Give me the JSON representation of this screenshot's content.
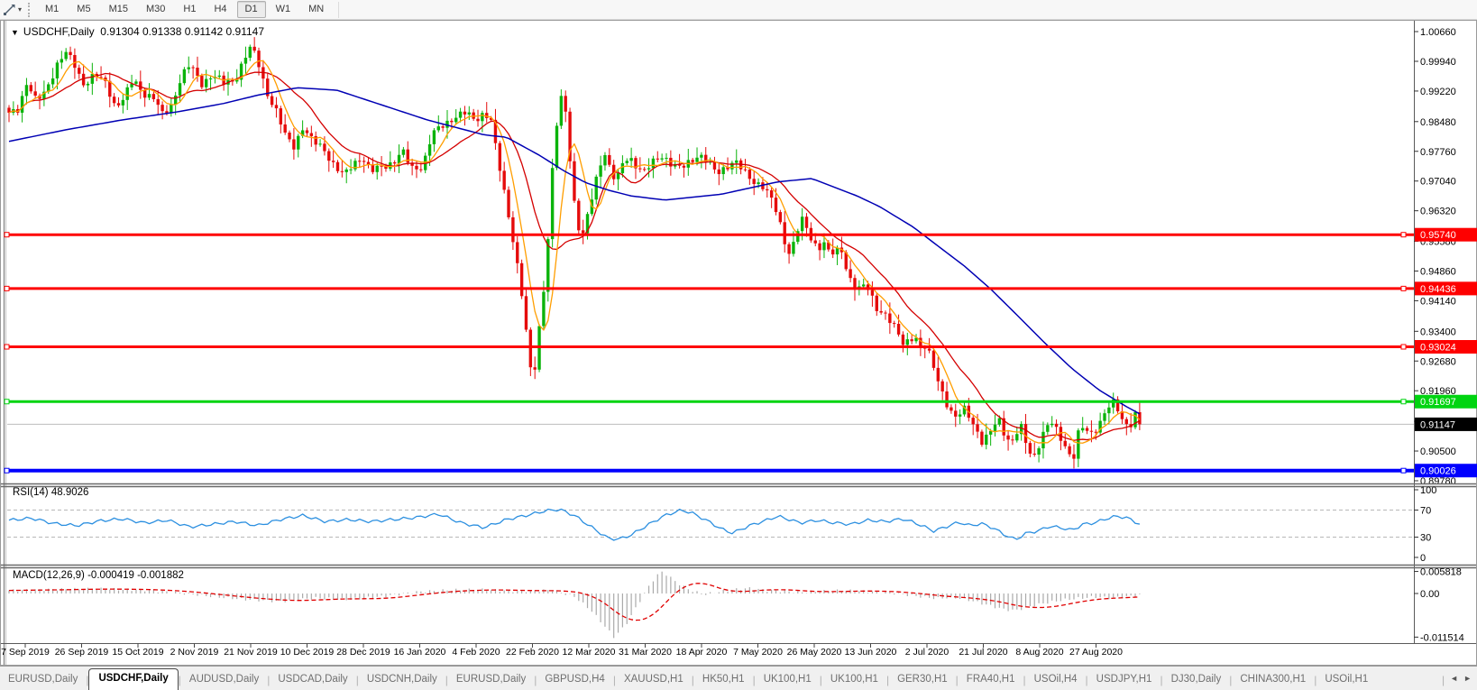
{
  "toolbar": {
    "tool_icon": "trendline-tool-icon",
    "dropdown_glyph": "▾",
    "timeframes": [
      "M1",
      "M5",
      "M15",
      "M30",
      "H1",
      "H4",
      "D1",
      "W1",
      "MN"
    ],
    "active_timeframe": "D1"
  },
  "chart": {
    "collapse_glyph": "▼",
    "symbol_title": "USDCHF,Daily",
    "ohlc_text": "0.91304 0.91338 0.91142 0.91147"
  },
  "indicators": {
    "rsi_label": "RSI(14)",
    "rsi_value": "48.9026",
    "macd_label": "MACD(12,26,9)",
    "macd_values": "-0.000419 -0.001882"
  },
  "tabbar": {
    "divider_glyph": "|",
    "scroll_left_glyph": "◄",
    "scroll_right_glyph": "►",
    "tabs": [
      {
        "label": "EURUSD,Daily",
        "active": false
      },
      {
        "label": "USDCHF,Daily",
        "active": true
      },
      {
        "label": "AUDUSD,Daily",
        "active": false
      },
      {
        "label": "USDCAD,Daily",
        "active": false
      },
      {
        "label": "USDCNH,Daily",
        "active": false
      },
      {
        "label": "EURUSD,Daily",
        "active": false
      },
      {
        "label": "GBPUSD,H4",
        "active": false
      },
      {
        "label": "XAUUSD,H1",
        "active": false
      },
      {
        "label": "HK50,H1",
        "active": false
      },
      {
        "label": "UK100,H1",
        "active": false
      },
      {
        "label": "UK100,H1",
        "active": false
      },
      {
        "label": "GER30,H1",
        "active": false
      },
      {
        "label": "FRA40,H1",
        "active": false
      },
      {
        "label": "USOil,H4",
        "active": false
      },
      {
        "label": "USDJPY,H1",
        "active": false
      },
      {
        "label": "DJ30,Daily",
        "active": false
      },
      {
        "label": "CHINA300,H1",
        "active": false
      },
      {
        "label": "USOil,H1",
        "active": false
      }
    ]
  },
  "chart_data": {
    "type": "candlestick+indicators",
    "symbol": "USDCHF",
    "timeframe": "Daily",
    "bars": 259,
    "price_range": {
      "top": 1.00879,
      "bottom": 0.89736
    },
    "price_axis_ticks": [
      "1.00660",
      "0.99940",
      "0.99220",
      "0.98480",
      "0.97760",
      "0.97040",
      "0.96320",
      "0.95580",
      "0.94860",
      "0.94140",
      "0.93400",
      "0.92680",
      "0.91960",
      "0.91220",
      "0.90500",
      "0.89780"
    ],
    "date_labels": [
      "7 Sep 2019",
      "26 Sep 2019",
      "15 Oct 2019",
      "2 Nov 2019",
      "21 Nov 2019",
      "10 Dec 2019",
      "28 Dec 2019",
      "16 Jan 2020",
      "4 Feb 2020",
      "22 Feb 2020",
      "12 Mar 2020",
      "31 Mar 2020",
      "18 Apr 2020",
      "7 May 2020",
      "26 May 2020",
      "13 Jun 2020",
      "2 Jul 2020",
      "21 Jul 2020",
      "8 Aug 2020",
      "27 Aug 2020"
    ],
    "hlines": [
      {
        "price": 0.9574,
        "label": "0.95740",
        "color": "#fe0000",
        "width": 3
      },
      {
        "price": 0.94436,
        "label": "0.94436",
        "color": "#fe0000",
        "width": 3
      },
      {
        "price": 0.93024,
        "label": "0.93024",
        "color": "#fe0000",
        "width": 3
      },
      {
        "price": 0.91697,
        "label": "0.91697",
        "color": "#00d411",
        "width": 3
      },
      {
        "price": 0.90026,
        "label": "0.90026",
        "color": "#0000fe",
        "width": 4
      }
    ],
    "current_price": {
      "price": 0.91147,
      "label": "0.91147",
      "line_color": "#bdbdbd",
      "badge_color": "#000000"
    },
    "colors": {
      "bull": "#0bb30b",
      "bear": "#e50b0b",
      "ma_fast": "#ff9e00",
      "ma_mid": "#d40000",
      "ma_slow": "#0000b4",
      "rsi": "#2b8fe0",
      "rsi_level": "#b8b8b8",
      "macd_hist": "#aaaaaa",
      "macd_signal": "#e00000",
      "axis_text": "#000000",
      "badge_text": "#ffffff"
    },
    "close_path": [
      [
        0.0,
        0.9865
      ],
      [
        0.008,
        0.988
      ],
      [
        0.016,
        0.9945
      ],
      [
        0.024,
        0.9895
      ],
      [
        0.032,
        0.992
      ],
      [
        0.042,
        0.9985
      ],
      [
        0.05,
        1.0015
      ],
      [
        0.058,
        0.9985
      ],
      [
        0.066,
        0.994
      ],
      [
        0.076,
        0.996
      ],
      [
        0.086,
        0.994
      ],
      [
        0.094,
        0.9885
      ],
      [
        0.102,
        0.9905
      ],
      [
        0.11,
        0.995
      ],
      [
        0.118,
        0.992
      ],
      [
        0.128,
        0.9905
      ],
      [
        0.136,
        0.9862
      ],
      [
        0.144,
        0.989
      ],
      [
        0.152,
        0.9955
      ],
      [
        0.16,
        0.9985
      ],
      [
        0.17,
        0.994
      ],
      [
        0.18,
        0.9962
      ],
      [
        0.19,
        0.994
      ],
      [
        0.2,
        0.995
      ],
      [
        0.208,
        1.0
      ],
      [
        0.214,
        1.0028
      ],
      [
        0.22,
        0.9995
      ],
      [
        0.228,
        0.992
      ],
      [
        0.236,
        0.9875
      ],
      [
        0.244,
        0.9815
      ],
      [
        0.252,
        0.979
      ],
      [
        0.26,
        0.9835
      ],
      [
        0.268,
        0.98
      ],
      [
        0.278,
        0.9785
      ],
      [
        0.288,
        0.974
      ],
      [
        0.296,
        0.9715
      ],
      [
        0.304,
        0.9745
      ],
      [
        0.312,
        0.9765
      ],
      [
        0.32,
        0.9725
      ],
      [
        0.33,
        0.974
      ],
      [
        0.34,
        0.975
      ],
      [
        0.348,
        0.9775
      ],
      [
        0.356,
        0.9735
      ],
      [
        0.366,
        0.974
      ],
      [
        0.374,
        0.9815
      ],
      [
        0.384,
        0.984
      ],
      [
        0.394,
        0.986
      ],
      [
        0.404,
        0.9868
      ],
      [
        0.412,
        0.9852
      ],
      [
        0.42,
        0.987
      ],
      [
        0.426,
        0.9855
      ],
      [
        0.43,
        0.979
      ],
      [
        0.436,
        0.9705
      ],
      [
        0.442,
        0.962
      ],
      [
        0.448,
        0.953
      ],
      [
        0.454,
        0.942
      ],
      [
        0.458,
        0.932
      ],
      [
        0.462,
        0.923
      ],
      [
        0.466,
        0.926
      ],
      [
        0.47,
        0.938
      ],
      [
        0.474,
        0.947
      ],
      [
        0.478,
        0.961
      ],
      [
        0.482,
        0.979
      ],
      [
        0.487,
        0.989
      ],
      [
        0.49,
        0.9915
      ],
      [
        0.494,
        0.984
      ],
      [
        0.498,
        0.969
      ],
      [
        0.503,
        0.96
      ],
      [
        0.507,
        0.9565
      ],
      [
        0.512,
        0.962
      ],
      [
        0.517,
        0.968
      ],
      [
        0.522,
        0.974
      ],
      [
        0.527,
        0.9775
      ],
      [
        0.532,
        0.973
      ],
      [
        0.537,
        0.97
      ],
      [
        0.542,
        0.974
      ],
      [
        0.548,
        0.9765
      ],
      [
        0.554,
        0.9745
      ],
      [
        0.562,
        0.9725
      ],
      [
        0.57,
        0.975
      ],
      [
        0.578,
        0.9768
      ],
      [
        0.586,
        0.9745
      ],
      [
        0.594,
        0.9732
      ],
      [
        0.602,
        0.9752
      ],
      [
        0.61,
        0.977
      ],
      [
        0.618,
        0.9748
      ],
      [
        0.626,
        0.9722
      ],
      [
        0.634,
        0.974
      ],
      [
        0.642,
        0.9752
      ],
      [
        0.65,
        0.9725
      ],
      [
        0.658,
        0.9705
      ],
      [
        0.666,
        0.9695
      ],
      [
        0.674,
        0.966
      ],
      [
        0.68,
        0.962
      ],
      [
        0.686,
        0.956
      ],
      [
        0.691,
        0.9525
      ],
      [
        0.696,
        0.9575
      ],
      [
        0.701,
        0.961
      ],
      [
        0.706,
        0.9585
      ],
      [
        0.711,
        0.9555
      ],
      [
        0.716,
        0.9545
      ],
      [
        0.721,
        0.9555
      ],
      [
        0.726,
        0.9525
      ],
      [
        0.731,
        0.953
      ],
      [
        0.736,
        0.954
      ],
      [
        0.741,
        0.949
      ],
      [
        0.746,
        0.9455
      ],
      [
        0.751,
        0.944
      ],
      [
        0.756,
        0.9448
      ],
      [
        0.761,
        0.944
      ],
      [
        0.766,
        0.9402
      ],
      [
        0.771,
        0.939
      ],
      [
        0.776,
        0.9378
      ],
      [
        0.781,
        0.9355
      ],
      [
        0.786,
        0.9335
      ],
      [
        0.791,
        0.931
      ],
      [
        0.796,
        0.9322
      ],
      [
        0.801,
        0.9332
      ],
      [
        0.806,
        0.9295
      ],
      [
        0.811,
        0.93
      ],
      [
        0.816,
        0.9272
      ],
      [
        0.821,
        0.923
      ],
      [
        0.826,
        0.919
      ],
      [
        0.831,
        0.9152
      ],
      [
        0.836,
        0.9125
      ],
      [
        0.841,
        0.914
      ],
      [
        0.846,
        0.9158
      ],
      [
        0.851,
        0.9128
      ],
      [
        0.856,
        0.9098
      ],
      [
        0.861,
        0.9065
      ],
      [
        0.866,
        0.9085
      ],
      [
        0.871,
        0.9115
      ],
      [
        0.876,
        0.9128
      ],
      [
        0.881,
        0.909
      ],
      [
        0.886,
        0.9062
      ],
      [
        0.891,
        0.909
      ],
      [
        0.896,
        0.9108
      ],
      [
        0.901,
        0.9058
      ],
      [
        0.906,
        0.9035
      ],
      [
        0.911,
        0.9065
      ],
      [
        0.916,
        0.9095
      ],
      [
        0.921,
        0.9122
      ],
      [
        0.926,
        0.9105
      ],
      [
        0.931,
        0.9082
      ],
      [
        0.936,
        0.9052
      ],
      [
        0.941,
        0.9022
      ],
      [
        0.946,
        0.9092
      ],
      [
        0.951,
        0.9112
      ],
      [
        0.956,
        0.9092
      ],
      [
        0.961,
        0.9105
      ],
      [
        0.966,
        0.9122
      ],
      [
        0.971,
        0.9148
      ],
      [
        0.976,
        0.9168
      ],
      [
        0.981,
        0.9152
      ],
      [
        0.986,
        0.9122
      ],
      [
        0.991,
        0.9108
      ],
      [
        0.996,
        0.9135
      ],
      [
        1.0,
        0.91147
      ]
    ],
    "slow_ma_path": [
      [
        0.0,
        0.98
      ],
      [
        0.05,
        0.9828
      ],
      [
        0.1,
        0.9852
      ],
      [
        0.15,
        0.9872
      ],
      [
        0.19,
        0.9892
      ],
      [
        0.22,
        0.9912
      ],
      [
        0.255,
        0.993
      ],
      [
        0.29,
        0.9924
      ],
      [
        0.33,
        0.9888
      ],
      [
        0.37,
        0.9852
      ],
      [
        0.42,
        0.9816
      ],
      [
        0.44,
        0.981
      ],
      [
        0.47,
        0.9765
      ],
      [
        0.49,
        0.973
      ],
      [
        0.51,
        0.97
      ],
      [
        0.53,
        0.9682
      ],
      [
        0.55,
        0.9668
      ],
      [
        0.58,
        0.9658
      ],
      [
        0.63,
        0.9672
      ],
      [
        0.68,
        0.9702
      ],
      [
        0.71,
        0.971
      ],
      [
        0.75,
        0.9668
      ],
      [
        0.77,
        0.9642
      ],
      [
        0.8,
        0.9592
      ],
      [
        0.82,
        0.955
      ],
      [
        0.845,
        0.9498
      ],
      [
        0.868,
        0.9443
      ],
      [
        0.892,
        0.9378
      ],
      [
        0.916,
        0.9312
      ],
      [
        0.94,
        0.925
      ],
      [
        0.964,
        0.9198
      ],
      [
        0.988,
        0.9158
      ],
      [
        1.0,
        0.914
      ]
    ],
    "rsi": {
      "levels": [
        100,
        70,
        30,
        0
      ],
      "path": [
        [
          0.0,
          55
        ],
        [
          0.02,
          58
        ],
        [
          0.04,
          50
        ],
        [
          0.06,
          47
        ],
        [
          0.08,
          54
        ],
        [
          0.1,
          57
        ],
        [
          0.12,
          51
        ],
        [
          0.14,
          55
        ],
        [
          0.16,
          45
        ],
        [
          0.18,
          49
        ],
        [
          0.2,
          53
        ],
        [
          0.22,
          47
        ],
        [
          0.24,
          56
        ],
        [
          0.26,
          62
        ],
        [
          0.28,
          53
        ],
        [
          0.3,
          56
        ],
        [
          0.32,
          53
        ],
        [
          0.34,
          56
        ],
        [
          0.36,
          59
        ],
        [
          0.38,
          64
        ],
        [
          0.4,
          51
        ],
        [
          0.42,
          44
        ],
        [
          0.44,
          56
        ],
        [
          0.46,
          63
        ],
        [
          0.475,
          69
        ],
        [
          0.487,
          71
        ],
        [
          0.5,
          62
        ],
        [
          0.515,
          45
        ],
        [
          0.53,
          28
        ],
        [
          0.54,
          27
        ],
        [
          0.55,
          33
        ],
        [
          0.565,
          48
        ],
        [
          0.58,
          62
        ],
        [
          0.595,
          70
        ],
        [
          0.605,
          65
        ],
        [
          0.62,
          52
        ],
        [
          0.63,
          42
        ],
        [
          0.64,
          36
        ],
        [
          0.655,
          47
        ],
        [
          0.67,
          55
        ],
        [
          0.68,
          61
        ],
        [
          0.69,
          56
        ],
        [
          0.7,
          51
        ],
        [
          0.715,
          55
        ],
        [
          0.73,
          51
        ],
        [
          0.745,
          49
        ],
        [
          0.76,
          55
        ],
        [
          0.775,
          53
        ],
        [
          0.79,
          57
        ],
        [
          0.8,
          52
        ],
        [
          0.81,
          45
        ],
        [
          0.818,
          39
        ],
        [
          0.83,
          46
        ],
        [
          0.84,
          52
        ],
        [
          0.85,
          47
        ],
        [
          0.86,
          50
        ],
        [
          0.87,
          44
        ],
        [
          0.88,
          34
        ],
        [
          0.89,
          26
        ],
        [
          0.9,
          36
        ],
        [
          0.91,
          39
        ],
        [
          0.92,
          46
        ],
        [
          0.93,
          44
        ],
        [
          0.94,
          40
        ],
        [
          0.95,
          49
        ],
        [
          0.96,
          51
        ],
        [
          0.97,
          57
        ],
        [
          0.98,
          61
        ],
        [
          0.99,
          58
        ],
        [
          1.0,
          49
        ]
      ]
    },
    "macd": {
      "axis_labels": [
        "0.005818",
        "0.00",
        "-0.011514"
      ],
      "axis_values": [
        0.005818,
        0,
        -0.011514
      ],
      "hist_path": [
        [
          0.0,
          0.0008
        ],
        [
          0.04,
          0.0011
        ],
        [
          0.08,
          0.0012
        ],
        [
          0.12,
          0.0009
        ],
        [
          0.15,
          0.0002
        ],
        [
          0.18,
          -0.0008
        ],
        [
          0.21,
          -0.0016
        ],
        [
          0.24,
          -0.0021
        ],
        [
          0.27,
          -0.0012
        ],
        [
          0.3,
          -0.0016
        ],
        [
          0.33,
          -0.0008
        ],
        [
          0.36,
          0.0004
        ],
        [
          0.39,
          0.0009
        ],
        [
          0.42,
          0.001
        ],
        [
          0.45,
          0.0006
        ],
        [
          0.48,
          0.0009
        ],
        [
          0.5,
          -0.0008
        ],
        [
          0.515,
          -0.0045
        ],
        [
          0.528,
          -0.009
        ],
        [
          0.535,
          -0.0115
        ],
        [
          0.545,
          -0.0085
        ],
        [
          0.555,
          -0.0035
        ],
        [
          0.565,
          0.0015
        ],
        [
          0.572,
          0.0045
        ],
        [
          0.578,
          0.0058
        ],
        [
          0.585,
          0.0042
        ],
        [
          0.595,
          0.002
        ],
        [
          0.605,
          0.0006
        ],
        [
          0.615,
          -0.0003
        ],
        [
          0.625,
          0.0003
        ],
        [
          0.64,
          0.001
        ],
        [
          0.655,
          0.0014
        ],
        [
          0.67,
          0.0008
        ],
        [
          0.685,
          0.0006
        ],
        [
          0.7,
          0.0003
        ],
        [
          0.72,
          0.0006
        ],
        [
          0.74,
          0.0008
        ],
        [
          0.76,
          0.0005
        ],
        [
          0.78,
          0.0002
        ],
        [
          0.8,
          -0.0006
        ],
        [
          0.82,
          -0.0013
        ],
        [
          0.835,
          -0.001
        ],
        [
          0.85,
          -0.0018
        ],
        [
          0.865,
          -0.003
        ],
        [
          0.88,
          -0.0042
        ],
        [
          0.89,
          -0.0045
        ],
        [
          0.9,
          -0.0036
        ],
        [
          0.915,
          -0.0026
        ],
        [
          0.93,
          -0.0018
        ],
        [
          0.945,
          -0.0013
        ],
        [
          0.96,
          -0.0009
        ],
        [
          0.975,
          -0.0012
        ],
        [
          0.99,
          -0.0008
        ],
        [
          1.0,
          -0.0004
        ]
      ]
    }
  }
}
